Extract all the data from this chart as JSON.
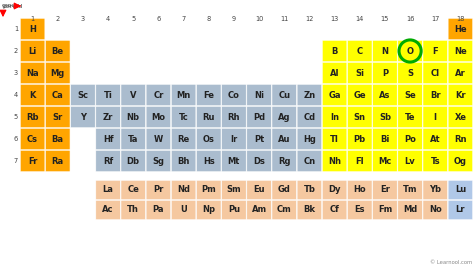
{
  "watermark": "© Learnool.com",
  "colors": {
    "orange": "#FFA500",
    "yellow": "#FFFF00",
    "blue_gray": "#AABCCE",
    "peach": "#F5C8A0",
    "light_blue": "#B0C8E8",
    "white": "#FFFFFF"
  },
  "elements": [
    {
      "symbol": "H",
      "row": 1,
      "col": 1,
      "color": "orange"
    },
    {
      "symbol": "He",
      "row": 1,
      "col": 18,
      "color": "orange"
    },
    {
      "symbol": "Li",
      "row": 2,
      "col": 1,
      "color": "orange"
    },
    {
      "symbol": "Be",
      "row": 2,
      "col": 2,
      "color": "orange"
    },
    {
      "symbol": "B",
      "row": 2,
      "col": 13,
      "color": "yellow"
    },
    {
      "symbol": "C",
      "row": 2,
      "col": 14,
      "color": "yellow"
    },
    {
      "symbol": "N",
      "row": 2,
      "col": 15,
      "color": "yellow"
    },
    {
      "symbol": "O",
      "row": 2,
      "col": 16,
      "color": "yellow",
      "highlight": true
    },
    {
      "symbol": "F",
      "row": 2,
      "col": 17,
      "color": "yellow"
    },
    {
      "symbol": "Ne",
      "row": 2,
      "col": 18,
      "color": "yellow"
    },
    {
      "symbol": "Na",
      "row": 3,
      "col": 1,
      "color": "orange"
    },
    {
      "symbol": "Mg",
      "row": 3,
      "col": 2,
      "color": "orange"
    },
    {
      "symbol": "Al",
      "row": 3,
      "col": 13,
      "color": "yellow"
    },
    {
      "symbol": "Si",
      "row": 3,
      "col": 14,
      "color": "yellow"
    },
    {
      "symbol": "P",
      "row": 3,
      "col": 15,
      "color": "yellow"
    },
    {
      "symbol": "S",
      "row": 3,
      "col": 16,
      "color": "yellow"
    },
    {
      "symbol": "Cl",
      "row": 3,
      "col": 17,
      "color": "yellow"
    },
    {
      "symbol": "Ar",
      "row": 3,
      "col": 18,
      "color": "yellow"
    },
    {
      "symbol": "K",
      "row": 4,
      "col": 1,
      "color": "orange"
    },
    {
      "symbol": "Ca",
      "row": 4,
      "col": 2,
      "color": "orange"
    },
    {
      "symbol": "Sc",
      "row": 4,
      "col": 3,
      "color": "blue_gray"
    },
    {
      "symbol": "Ti",
      "row": 4,
      "col": 4,
      "color": "blue_gray"
    },
    {
      "symbol": "V",
      "row": 4,
      "col": 5,
      "color": "blue_gray"
    },
    {
      "symbol": "Cr",
      "row": 4,
      "col": 6,
      "color": "blue_gray"
    },
    {
      "symbol": "Mn",
      "row": 4,
      "col": 7,
      "color": "blue_gray"
    },
    {
      "symbol": "Fe",
      "row": 4,
      "col": 8,
      "color": "blue_gray"
    },
    {
      "symbol": "Co",
      "row": 4,
      "col": 9,
      "color": "blue_gray"
    },
    {
      "symbol": "Ni",
      "row": 4,
      "col": 10,
      "color": "blue_gray"
    },
    {
      "symbol": "Cu",
      "row": 4,
      "col": 11,
      "color": "blue_gray"
    },
    {
      "symbol": "Zn",
      "row": 4,
      "col": 12,
      "color": "blue_gray"
    },
    {
      "symbol": "Ga",
      "row": 4,
      "col": 13,
      "color": "yellow"
    },
    {
      "symbol": "Ge",
      "row": 4,
      "col": 14,
      "color": "yellow"
    },
    {
      "symbol": "As",
      "row": 4,
      "col": 15,
      "color": "yellow"
    },
    {
      "symbol": "Se",
      "row": 4,
      "col": 16,
      "color": "yellow"
    },
    {
      "symbol": "Br",
      "row": 4,
      "col": 17,
      "color": "yellow"
    },
    {
      "symbol": "Kr",
      "row": 4,
      "col": 18,
      "color": "yellow"
    },
    {
      "symbol": "Rb",
      "row": 5,
      "col": 1,
      "color": "orange"
    },
    {
      "symbol": "Sr",
      "row": 5,
      "col": 2,
      "color": "orange"
    },
    {
      "symbol": "Y",
      "row": 5,
      "col": 3,
      "color": "blue_gray"
    },
    {
      "symbol": "Zr",
      "row": 5,
      "col": 4,
      "color": "blue_gray"
    },
    {
      "symbol": "Nb",
      "row": 5,
      "col": 5,
      "color": "blue_gray"
    },
    {
      "symbol": "Mo",
      "row": 5,
      "col": 6,
      "color": "blue_gray"
    },
    {
      "symbol": "Tc",
      "row": 5,
      "col": 7,
      "color": "blue_gray"
    },
    {
      "symbol": "Ru",
      "row": 5,
      "col": 8,
      "color": "blue_gray"
    },
    {
      "symbol": "Rh",
      "row": 5,
      "col": 9,
      "color": "blue_gray"
    },
    {
      "symbol": "Pd",
      "row": 5,
      "col": 10,
      "color": "blue_gray"
    },
    {
      "symbol": "Ag",
      "row": 5,
      "col": 11,
      "color": "blue_gray"
    },
    {
      "symbol": "Cd",
      "row": 5,
      "col": 12,
      "color": "blue_gray"
    },
    {
      "symbol": "In",
      "row": 5,
      "col": 13,
      "color": "yellow"
    },
    {
      "symbol": "Sn",
      "row": 5,
      "col": 14,
      "color": "yellow"
    },
    {
      "symbol": "Sb",
      "row": 5,
      "col": 15,
      "color": "yellow"
    },
    {
      "symbol": "Te",
      "row": 5,
      "col": 16,
      "color": "yellow"
    },
    {
      "symbol": "I",
      "row": 5,
      "col": 17,
      "color": "yellow"
    },
    {
      "symbol": "Xe",
      "row": 5,
      "col": 18,
      "color": "yellow"
    },
    {
      "symbol": "Cs",
      "row": 6,
      "col": 1,
      "color": "orange"
    },
    {
      "symbol": "Ba",
      "row": 6,
      "col": 2,
      "color": "orange"
    },
    {
      "symbol": "Hf",
      "row": 6,
      "col": 4,
      "color": "blue_gray"
    },
    {
      "symbol": "Ta",
      "row": 6,
      "col": 5,
      "color": "blue_gray"
    },
    {
      "symbol": "W",
      "row": 6,
      "col": 6,
      "color": "blue_gray"
    },
    {
      "symbol": "Re",
      "row": 6,
      "col": 7,
      "color": "blue_gray"
    },
    {
      "symbol": "Os",
      "row": 6,
      "col": 8,
      "color": "blue_gray"
    },
    {
      "symbol": "Ir",
      "row": 6,
      "col": 9,
      "color": "blue_gray"
    },
    {
      "symbol": "Pt",
      "row": 6,
      "col": 10,
      "color": "blue_gray"
    },
    {
      "symbol": "Au",
      "row": 6,
      "col": 11,
      "color": "blue_gray"
    },
    {
      "symbol": "Hg",
      "row": 6,
      "col": 12,
      "color": "blue_gray"
    },
    {
      "symbol": "Tl",
      "row": 6,
      "col": 13,
      "color": "yellow"
    },
    {
      "symbol": "Pb",
      "row": 6,
      "col": 14,
      "color": "yellow"
    },
    {
      "symbol": "Bi",
      "row": 6,
      "col": 15,
      "color": "yellow"
    },
    {
      "symbol": "Po",
      "row": 6,
      "col": 16,
      "color": "yellow"
    },
    {
      "symbol": "At",
      "row": 6,
      "col": 17,
      "color": "yellow"
    },
    {
      "symbol": "Rn",
      "row": 6,
      "col": 18,
      "color": "yellow"
    },
    {
      "symbol": "Fr",
      "row": 7,
      "col": 1,
      "color": "orange"
    },
    {
      "symbol": "Ra",
      "row": 7,
      "col": 2,
      "color": "orange"
    },
    {
      "symbol": "Rf",
      "row": 7,
      "col": 4,
      "color": "blue_gray"
    },
    {
      "symbol": "Db",
      "row": 7,
      "col": 5,
      "color": "blue_gray"
    },
    {
      "symbol": "Sg",
      "row": 7,
      "col": 6,
      "color": "blue_gray"
    },
    {
      "symbol": "Bh",
      "row": 7,
      "col": 7,
      "color": "blue_gray"
    },
    {
      "symbol": "Hs",
      "row": 7,
      "col": 8,
      "color": "blue_gray"
    },
    {
      "symbol": "Mt",
      "row": 7,
      "col": 9,
      "color": "blue_gray"
    },
    {
      "symbol": "Ds",
      "row": 7,
      "col": 10,
      "color": "blue_gray"
    },
    {
      "symbol": "Rg",
      "row": 7,
      "col": 11,
      "color": "blue_gray"
    },
    {
      "symbol": "Cn",
      "row": 7,
      "col": 12,
      "color": "blue_gray"
    },
    {
      "symbol": "Nh",
      "row": 7,
      "col": 13,
      "color": "yellow"
    },
    {
      "symbol": "Fl",
      "row": 7,
      "col": 14,
      "color": "yellow"
    },
    {
      "symbol": "Mc",
      "row": 7,
      "col": 15,
      "color": "yellow"
    },
    {
      "symbol": "Lv",
      "row": 7,
      "col": 16,
      "color": "yellow"
    },
    {
      "symbol": "Ts",
      "row": 7,
      "col": 17,
      "color": "yellow"
    },
    {
      "symbol": "Og",
      "row": 7,
      "col": 18,
      "color": "yellow"
    },
    {
      "symbol": "La",
      "row": 9,
      "col": 4,
      "color": "peach"
    },
    {
      "symbol": "Ce",
      "row": 9,
      "col": 5,
      "color": "peach"
    },
    {
      "symbol": "Pr",
      "row": 9,
      "col": 6,
      "color": "peach"
    },
    {
      "symbol": "Nd",
      "row": 9,
      "col": 7,
      "color": "peach"
    },
    {
      "symbol": "Pm",
      "row": 9,
      "col": 8,
      "color": "peach"
    },
    {
      "symbol": "Sm",
      "row": 9,
      "col": 9,
      "color": "peach"
    },
    {
      "symbol": "Eu",
      "row": 9,
      "col": 10,
      "color": "peach"
    },
    {
      "symbol": "Gd",
      "row": 9,
      "col": 11,
      "color": "peach"
    },
    {
      "symbol": "Tb",
      "row": 9,
      "col": 12,
      "color": "peach"
    },
    {
      "symbol": "Dy",
      "row": 9,
      "col": 13,
      "color": "peach"
    },
    {
      "symbol": "Ho",
      "row": 9,
      "col": 14,
      "color": "peach"
    },
    {
      "symbol": "Er",
      "row": 9,
      "col": 15,
      "color": "peach"
    },
    {
      "symbol": "Tm",
      "row": 9,
      "col": 16,
      "color": "peach"
    },
    {
      "symbol": "Yb",
      "row": 9,
      "col": 17,
      "color": "peach"
    },
    {
      "symbol": "Lu",
      "row": 9,
      "col": 18,
      "color": "light_blue"
    },
    {
      "symbol": "Ac",
      "row": 10,
      "col": 4,
      "color": "peach"
    },
    {
      "symbol": "Th",
      "row": 10,
      "col": 5,
      "color": "peach"
    },
    {
      "symbol": "Pa",
      "row": 10,
      "col": 6,
      "color": "peach"
    },
    {
      "symbol": "U",
      "row": 10,
      "col": 7,
      "color": "peach"
    },
    {
      "symbol": "Np",
      "row": 10,
      "col": 8,
      "color": "peach"
    },
    {
      "symbol": "Pu",
      "row": 10,
      "col": 9,
      "color": "peach"
    },
    {
      "symbol": "Am",
      "row": 10,
      "col": 10,
      "color": "peach"
    },
    {
      "symbol": "Cm",
      "row": 10,
      "col": 11,
      "color": "peach"
    },
    {
      "symbol": "Bk",
      "row": 10,
      "col": 12,
      "color": "peach"
    },
    {
      "symbol": "Cf",
      "row": 10,
      "col": 13,
      "color": "peach"
    },
    {
      "symbol": "Es",
      "row": 10,
      "col": 14,
      "color": "peach"
    },
    {
      "symbol": "Fm",
      "row": 10,
      "col": 15,
      "color": "peach"
    },
    {
      "symbol": "Md",
      "row": 10,
      "col": 16,
      "color": "peach"
    },
    {
      "symbol": "No",
      "row": 10,
      "col": 17,
      "color": "peach"
    },
    {
      "symbol": "Lr",
      "row": 10,
      "col": 18,
      "color": "light_blue"
    }
  ],
  "col_labels": [
    "1",
    "2",
    "3",
    "4",
    "5",
    "6",
    "7",
    "8",
    "9",
    "10",
    "11",
    "12",
    "13",
    "14",
    "15",
    "16",
    "17",
    "18"
  ],
  "row_labels": [
    "1",
    "2",
    "3",
    "4",
    "5",
    "6",
    "7"
  ],
  "highlight_color": "#00AA00",
  "fig_w": 4.74,
  "fig_h": 2.66,
  "dpi": 100
}
